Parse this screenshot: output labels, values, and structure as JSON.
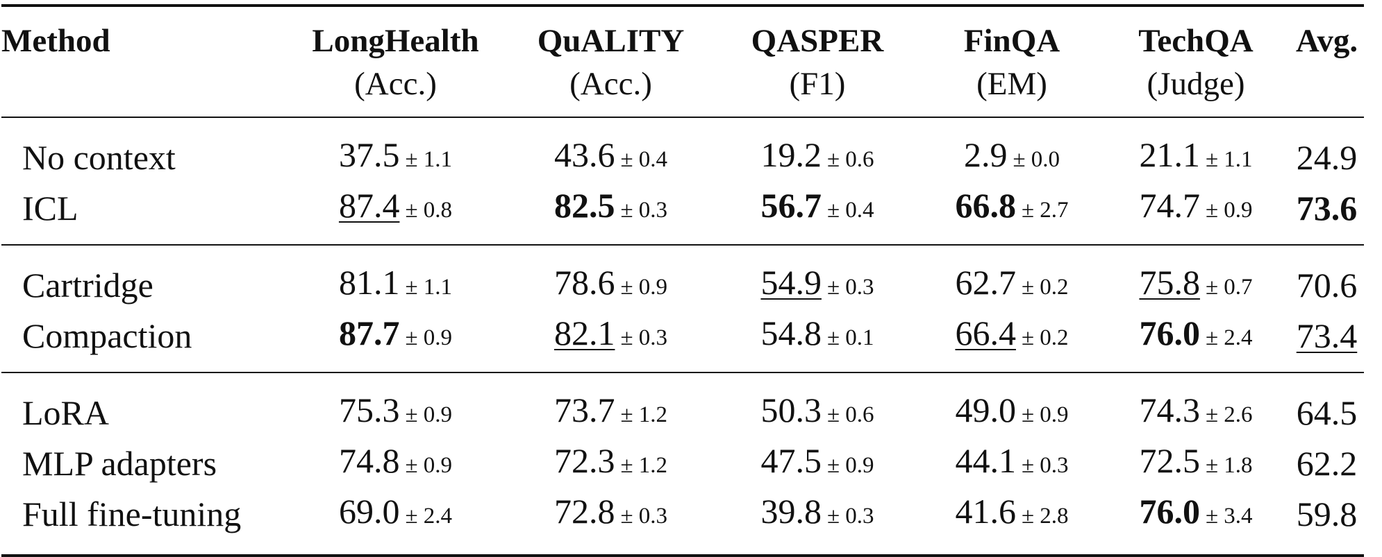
{
  "header": {
    "method": "Method",
    "columns": [
      {
        "name": "LongHealth",
        "metric": "(Acc.)"
      },
      {
        "name": "QuALITY",
        "metric": "(Acc.)"
      },
      {
        "name": "QASPER",
        "metric": "(F1)"
      },
      {
        "name": "FinQA",
        "metric": "(EM)"
      },
      {
        "name": "TechQA",
        "metric": "(Judge)"
      },
      {
        "name": "Avg.",
        "metric": ""
      }
    ]
  },
  "rows": [
    {
      "method": "No context",
      "cells": [
        {
          "v": "37.5",
          "s": "± 1.1",
          "bold": false,
          "under": false
        },
        {
          "v": "43.6",
          "s": "± 0.4",
          "bold": false,
          "under": false
        },
        {
          "v": "19.2",
          "s": "± 0.6",
          "bold": false,
          "under": false
        },
        {
          "v": "2.9",
          "s": "± 0.0",
          "bold": false,
          "under": false
        },
        {
          "v": "21.1",
          "s": "± 1.1",
          "bold": false,
          "under": false
        }
      ],
      "avg": {
        "v": "24.9",
        "bold": false,
        "under": false
      }
    },
    {
      "method": "ICL",
      "cells": [
        {
          "v": "87.4",
          "s": "± 0.8",
          "bold": false,
          "under": true
        },
        {
          "v": "82.5",
          "s": "± 0.3",
          "bold": true,
          "under": false
        },
        {
          "v": "56.7",
          "s": "± 0.4",
          "bold": true,
          "under": false
        },
        {
          "v": "66.8",
          "s": "± 2.7",
          "bold": true,
          "under": false
        },
        {
          "v": "74.7",
          "s": "± 0.9",
          "bold": false,
          "under": false
        }
      ],
      "avg": {
        "v": "73.6",
        "bold": true,
        "under": false
      }
    },
    {
      "method": "Cartridge",
      "cells": [
        {
          "v": "81.1",
          "s": "± 1.1",
          "bold": false,
          "under": false
        },
        {
          "v": "78.6",
          "s": "± 0.9",
          "bold": false,
          "under": false
        },
        {
          "v": "54.9",
          "s": "± 0.3",
          "bold": false,
          "under": true
        },
        {
          "v": "62.7",
          "s": "± 0.2",
          "bold": false,
          "under": false
        },
        {
          "v": "75.8",
          "s": "± 0.7",
          "bold": false,
          "under": true
        }
      ],
      "avg": {
        "v": "70.6",
        "bold": false,
        "under": false
      }
    },
    {
      "method": "Compaction",
      "cells": [
        {
          "v": "87.7",
          "s": "± 0.9",
          "bold": true,
          "under": false
        },
        {
          "v": "82.1",
          "s": "± 0.3",
          "bold": false,
          "under": true
        },
        {
          "v": "54.8",
          "s": "± 0.1",
          "bold": false,
          "under": false
        },
        {
          "v": "66.4",
          "s": "± 0.2",
          "bold": false,
          "under": true
        },
        {
          "v": "76.0",
          "s": "± 2.4",
          "bold": true,
          "under": false
        }
      ],
      "avg": {
        "v": "73.4",
        "bold": false,
        "under": true
      }
    },
    {
      "method": "LoRA",
      "cells": [
        {
          "v": "75.3",
          "s": "± 0.9",
          "bold": false,
          "under": false
        },
        {
          "v": "73.7",
          "s": "± 1.2",
          "bold": false,
          "under": false
        },
        {
          "v": "50.3",
          "s": "± 0.6",
          "bold": false,
          "under": false
        },
        {
          "v": "49.0",
          "s": "± 0.9",
          "bold": false,
          "under": false
        },
        {
          "v": "74.3",
          "s": "± 2.6",
          "bold": false,
          "under": false
        }
      ],
      "avg": {
        "v": "64.5",
        "bold": false,
        "under": false
      }
    },
    {
      "method": "MLP adapters",
      "cells": [
        {
          "v": "74.8",
          "s": "± 0.9",
          "bold": false,
          "under": false
        },
        {
          "v": "72.3",
          "s": "± 1.2",
          "bold": false,
          "under": false
        },
        {
          "v": "47.5",
          "s": "± 0.9",
          "bold": false,
          "under": false
        },
        {
          "v": "44.1",
          "s": "± 0.3",
          "bold": false,
          "under": false
        },
        {
          "v": "72.5",
          "s": "± 1.8",
          "bold": false,
          "under": false
        }
      ],
      "avg": {
        "v": "62.2",
        "bold": false,
        "under": false
      }
    },
    {
      "method": "Full fine-tuning",
      "cells": [
        {
          "v": "69.0",
          "s": "± 2.4",
          "bold": false,
          "under": false
        },
        {
          "v": "72.8",
          "s": "± 0.3",
          "bold": false,
          "under": false
        },
        {
          "v": "39.8",
          "s": "± 0.3",
          "bold": false,
          "under": false
        },
        {
          "v": "41.6",
          "s": "± 2.8",
          "bold": false,
          "under": false
        },
        {
          "v": "76.0",
          "s": "± 3.4",
          "bold": true,
          "under": false
        }
      ],
      "avg": {
        "v": "59.8",
        "bold": false,
        "under": false
      }
    }
  ]
}
